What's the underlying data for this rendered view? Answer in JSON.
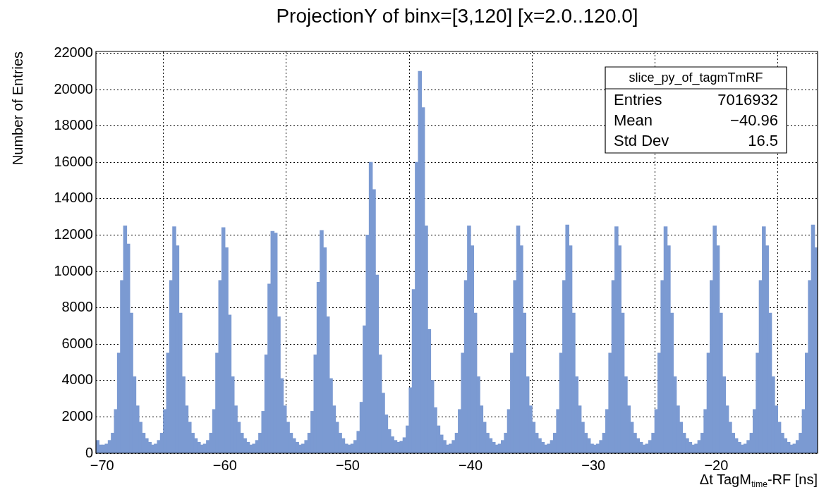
{
  "chart_data": {
    "type": "histogram",
    "title": "ProjectionY of binx=[3,120] [x=2.0..120.0]",
    "xlabel": "Δt TagM$_{time}$-RF [ns]",
    "ylabel": "Number of Entries",
    "annotations": [
      "slice_py_of_tagmTmRF",
      "Entries 7016932",
      "Mean −40.96",
      "Std Dev 16.5"
    ],
    "color": "#7b9ad2",
    "grid": true,
    "legend": false,
    "xlim": [
      -70.5,
      -11.75
    ],
    "ylim": [
      0,
      22100
    ],
    "xticks": [
      {
        "value": -70,
        "label": "−70"
      },
      {
        "value": -60,
        "label": "−60"
      },
      {
        "value": -50,
        "label": "−50"
      },
      {
        "value": -40,
        "label": "−40"
      },
      {
        "value": -30,
        "label": "−30"
      },
      {
        "value": -20,
        "label": "−20"
      }
    ],
    "yticks": [
      0,
      2000,
      4000,
      6000,
      8000,
      10000,
      12000,
      14000,
      16000,
      18000,
      20000,
      22000
    ],
    "bins": [
      -70.5,
      -70.25,
      -70,
      -69.75,
      -69.5,
      -69.25,
      -69,
      -68.75,
      -68.5,
      -68.25,
      -68,
      -67.75,
      -67.5,
      -67.25,
      -67,
      -66.75,
      -66.5,
      -66.25,
      -66,
      -65.75,
      -65.5,
      -65.25,
      -65,
      -64.75,
      -64.5,
      -64.25,
      -64,
      -63.75,
      -63.5,
      -63.25,
      -63,
      -62.75,
      -62.5,
      -62.25,
      -62,
      -61.75,
      -61.5,
      -61.25,
      -61,
      -60.75,
      -60.5,
      -60.25,
      -60,
      -59.75,
      -59.5,
      -59.25,
      -59,
      -58.75,
      -58.5,
      -58.25,
      -58,
      -57.75,
      -57.5,
      -57.25,
      -57,
      -56.75,
      -56.5,
      -56.25,
      -56,
      -55.75,
      -55.5,
      -55.25,
      -55,
      -54.75,
      -54.5,
      -54.25,
      -54,
      -53.75,
      -53.5,
      -53.25,
      -53,
      -52.75,
      -52.5,
      -52.25,
      -52,
      -51.75,
      -51.5,
      -51.25,
      -51,
      -50.75,
      -50.5,
      -50.25,
      -50,
      -49.75,
      -49.5,
      -49.25,
      -49,
      -48.75,
      -48.5,
      -48.25,
      -48,
      -47.75,
      -47.5,
      -47.25,
      -47,
      -46.75,
      -46.5,
      -46.25,
      -46,
      -45.75,
      -45.5,
      -45.25,
      -45,
      -44.75,
      -44.5,
      -44.25,
      -44,
      -43.75,
      -43.5,
      -43.25,
      -43,
      -42.75,
      -42.5,
      -42.25,
      -42,
      -41.75,
      -41.5,
      -41.25,
      -41,
      -40.75,
      -40.5,
      -40.25,
      -40,
      -39.75,
      -39.5,
      -39.25,
      -39,
      -38.75,
      -38.5,
      -38.25,
      -38,
      -37.75,
      -37.5,
      -37.25,
      -37,
      -36.75,
      -36.5,
      -36.25,
      -36,
      -35.75,
      -35.5,
      -35.25,
      -35,
      -34.75,
      -34.5,
      -34.25,
      -34,
      -33.75,
      -33.5,
      -33.25,
      -33,
      -32.75,
      -32.5,
      -32.25,
      -32,
      -31.75,
      -31.5,
      -31.25,
      -31,
      -30.75,
      -30.5,
      -30.25,
      -30,
      -29.75,
      -29.5,
      -29.25,
      -29,
      -28.75,
      -28.5,
      -28.25,
      -28,
      -27.75,
      -27.5,
      -27.25,
      -27,
      -26.75,
      -26.5,
      -26.25,
      -26,
      -25.75,
      -25.5,
      -25.25,
      -25,
      -24.75,
      -24.5,
      -24.25,
      -24,
      -23.75,
      -23.5,
      -23.25,
      -23,
      -22.75,
      -22.5,
      -22.25,
      -22,
      -21.75,
      -21.5,
      -21.25,
      -21,
      -20.75,
      -20.5,
      -20.25,
      -20,
      -19.75,
      -19.5,
      -19.25,
      -19,
      -18.75,
      -18.5,
      -18.25,
      -18,
      -17.75,
      -17.5,
      -17.25,
      -17,
      -16.75,
      -16.5,
      -16.25,
      -16,
      -15.75,
      -15.5,
      -15.25,
      -15,
      -14.75,
      -14.5,
      -14.25,
      -14,
      -13.75,
      -13.5,
      -13.25,
      -13,
      -12.75,
      -12.5,
      -12.25,
      -12,
      -11.75
    ],
    "values": [
      700,
      450,
      450,
      500,
      700,
      1100,
      2400,
      5500,
      9500,
      12500,
      11500,
      7700,
      4200,
      2600,
      1700,
      1100,
      800,
      600,
      450,
      500,
      700,
      1100,
      2400,
      5500,
      9500,
      12450,
      11400,
      7700,
      4200,
      2600,
      1700,
      1100,
      800,
      600,
      450,
      500,
      700,
      1100,
      2400,
      5500,
      9500,
      12400,
      11300,
      7600,
      4200,
      2600,
      1700,
      1100,
      800,
      600,
      450,
      500,
      700,
      1100,
      2300,
      5400,
      9300,
      12200,
      12100,
      7500,
      4100,
      2600,
      1700,
      1100,
      800,
      600,
      450,
      500,
      700,
      1100,
      2300,
      5400,
      9400,
      12250,
      11300,
      7500,
      4100,
      2600,
      1700,
      1100,
      800,
      500,
      450,
      500,
      700,
      1200,
      2800,
      7000,
      12000,
      16000,
      14500,
      9800,
      5400,
      3300,
      2100,
      1300,
      900,
      700,
      600,
      650,
      850,
      1500,
      3600,
      9000,
      16000,
      21000,
      19000,
      12500,
      6800,
      4000,
      2500,
      1500,
      1000,
      700,
      450,
      500,
      700,
      1100,
      2400,
      5500,
      9500,
      12500,
      11400,
      7700,
      4200,
      2600,
      1700,
      1100,
      800,
      600,
      450,
      500,
      700,
      1100,
      2400,
      5500,
      9500,
      12500,
      11400,
      7700,
      4200,
      2600,
      1700,
      1100,
      800,
      600,
      450,
      500,
      700,
      1100,
      2400,
      5500,
      9500,
      12550,
      11400,
      7700,
      4200,
      2600,
      1700,
      1100,
      800,
      500,
      450,
      500,
      700,
      1100,
      2400,
      5500,
      9500,
      12450,
      11400,
      7700,
      4200,
      2600,
      1700,
      1100,
      800,
      600,
      450,
      500,
      700,
      1100,
      2400,
      5500,
      9500,
      12450,
      11400,
      7700,
      4200,
      2600,
      1700,
      1100,
      800,
      600,
      450,
      500,
      700,
      1100,
      2400,
      5500,
      9500,
      12500,
      11400,
      7700,
      4200,
      2600,
      1700,
      1100,
      800,
      600,
      450,
      500,
      700,
      1100,
      2400,
      5500,
      9500,
      12450,
      11400,
      7700,
      4200,
      2600,
      1700,
      1100,
      800,
      600,
      450,
      500,
      700,
      1100,
      2400,
      5500,
      9500,
      12550,
      11300
    ]
  }
}
